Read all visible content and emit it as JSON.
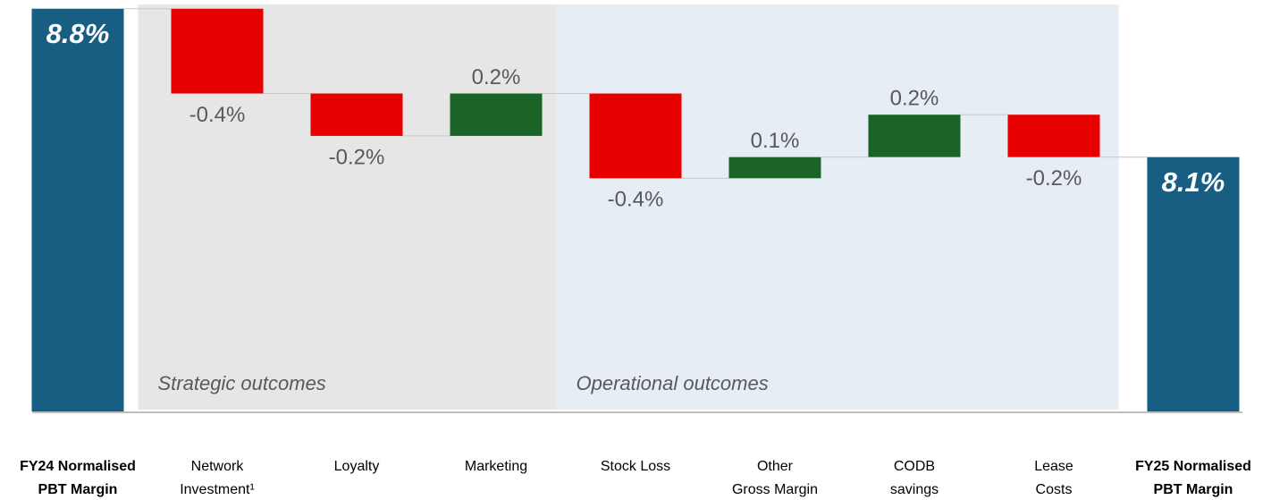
{
  "chart_data": {
    "type": "waterfall",
    "categories": [
      "FY24 Normalised\nPBT Margin",
      "Network\nInvestment¹",
      "Loyalty",
      "Marketing",
      "Stock Loss",
      "Other\nGross Margin",
      "CODB\nsavings",
      "Lease\nCosts",
      "FY25 Normalised\nPBT Margin"
    ],
    "values": [
      8.8,
      -0.4,
      -0.2,
      0.2,
      -0.4,
      0.1,
      0.2,
      -0.2,
      8.1
    ],
    "value_labels": [
      "8.8%",
      "-0.4%",
      "-0.2%",
      "0.2%",
      "-0.4%",
      "0.1%",
      "0.2%",
      "-0.2%",
      "8.1%"
    ],
    "measure": [
      "absolute",
      "relative",
      "relative",
      "relative",
      "relative",
      "relative",
      "relative",
      "relative",
      "total"
    ],
    "colors": [
      "#175e82",
      "#e60000",
      "#e60000",
      "#1a6428",
      "#e60000",
      "#1a6428",
      "#1a6428",
      "#e60000",
      "#175e82"
    ],
    "ylim": [
      6.9,
      8.82
    ],
    "groups": [
      {
        "label": "Strategic outcomes",
        "span": [
          1,
          3
        ],
        "color": "#e6e6e6"
      },
      {
        "label": "Operational outcomes",
        "span": [
          4,
          7
        ],
        "color": "#e6edf4"
      }
    ]
  }
}
